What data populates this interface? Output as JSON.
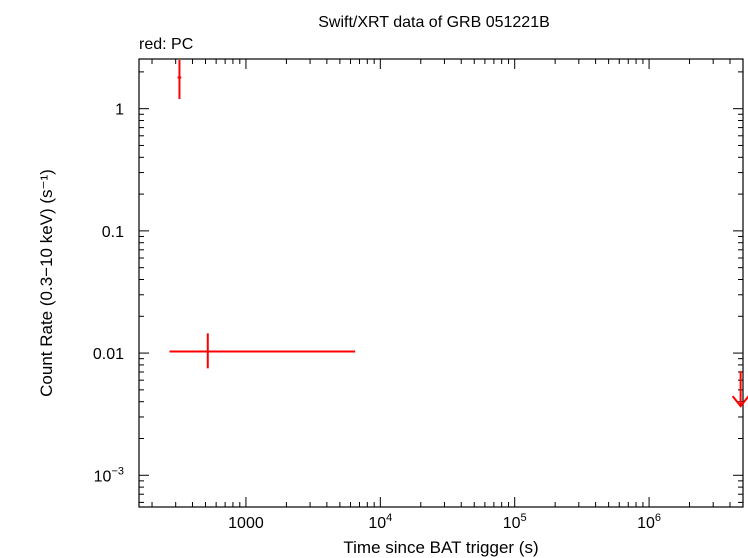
{
  "chart_data": {
    "type": "scatter",
    "title": "Swift/XRT data of GRB 051221B",
    "subtitle": "red: PC",
    "xlabel": "Time since BAT trigger (s)",
    "ylabel": "Count Rate (0.3−10 keV) (s⁻¹)",
    "x_scale": "log",
    "y_scale": "log",
    "xlim": [
      160,
      5000000
    ],
    "ylim": [
      0.00055,
      2.55
    ],
    "x_ticks": [
      {
        "value": 1000,
        "base": "1000",
        "exp": ""
      },
      {
        "value": 10000,
        "base": "10",
        "exp": "4"
      },
      {
        "value": 100000,
        "base": "10",
        "exp": "5"
      },
      {
        "value": 1000000,
        "base": "10",
        "exp": "6"
      }
    ],
    "y_ticks": [
      {
        "value": 1,
        "base": "1",
        "exp": ""
      },
      {
        "value": 0.1,
        "base": "0.1",
        "exp": ""
      },
      {
        "value": 0.01,
        "base": "0.01",
        "exp": ""
      },
      {
        "value": 0.001,
        "base": "10",
        "exp": "−3"
      }
    ],
    "grid": false,
    "color": "#ff0000",
    "series": [
      {
        "name": "PC",
        "points": [
          {
            "x": 320,
            "xerr": [
              310,
              330
            ],
            "y": 1.8,
            "yerr": [
              1.2,
              2.5
            ]
          },
          {
            "x": 520,
            "xerr": [
              270,
              6500
            ],
            "y": 0.0103,
            "yerr": [
              0.0075,
              0.0145
            ]
          }
        ],
        "upper_limits": [
          {
            "x": 4800000,
            "y": 0.0042
          }
        ]
      }
    ]
  }
}
